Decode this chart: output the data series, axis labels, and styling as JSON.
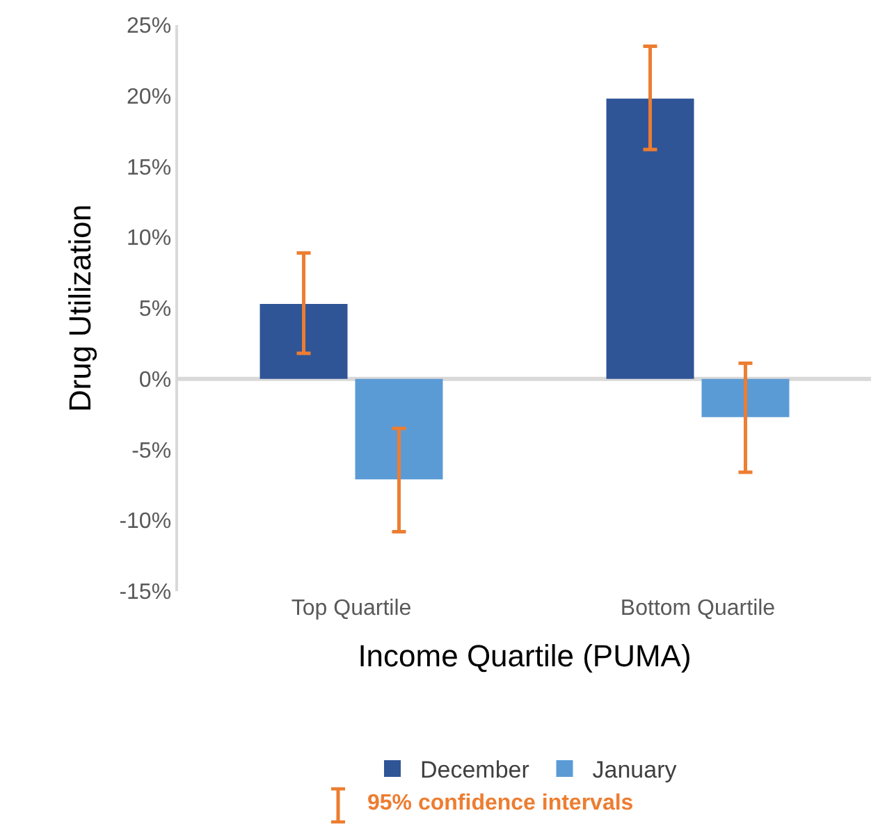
{
  "chart_data": {
    "type": "bar",
    "xlabel": "Income Quartile (PUMA)",
    "ylabel": "Drug Utilization",
    "categories": [
      "Top Quartile",
      "Bottom Quartile"
    ],
    "series": [
      {
        "name": "December",
        "color": "#2f5597",
        "values": [
          5.3,
          19.8
        ],
        "errors": [
          [
            1.8,
            8.9
          ],
          [
            16.2,
            23.5
          ]
        ]
      },
      {
        "name": "January",
        "color": "#5b9bd5",
        "values": [
          -7.1,
          -2.7
        ],
        "errors": [
          [
            -10.8,
            -3.5
          ],
          [
            -6.6,
            1.1
          ]
        ]
      }
    ],
    "ylim": [
      -15,
      25
    ],
    "yticks": [
      {
        "value": -15,
        "label": "-15%"
      },
      {
        "value": -10,
        "label": "-10%"
      },
      {
        "value": -5,
        "label": "-5%"
      },
      {
        "value": 0,
        "label": "0%"
      },
      {
        "value": 5,
        "label": "5%"
      },
      {
        "value": 10,
        "label": "10%"
      },
      {
        "value": 15,
        "label": "15%"
      },
      {
        "value": 20,
        "label": "20%"
      },
      {
        "value": 25,
        "label": "25%"
      }
    ],
    "ref_lines": [
      {
        "axis": "y",
        "value": 0,
        "color": "#d9d9d9"
      }
    ],
    "legend": "bottom",
    "annotations": [
      "95% confidence intervals"
    ]
  }
}
